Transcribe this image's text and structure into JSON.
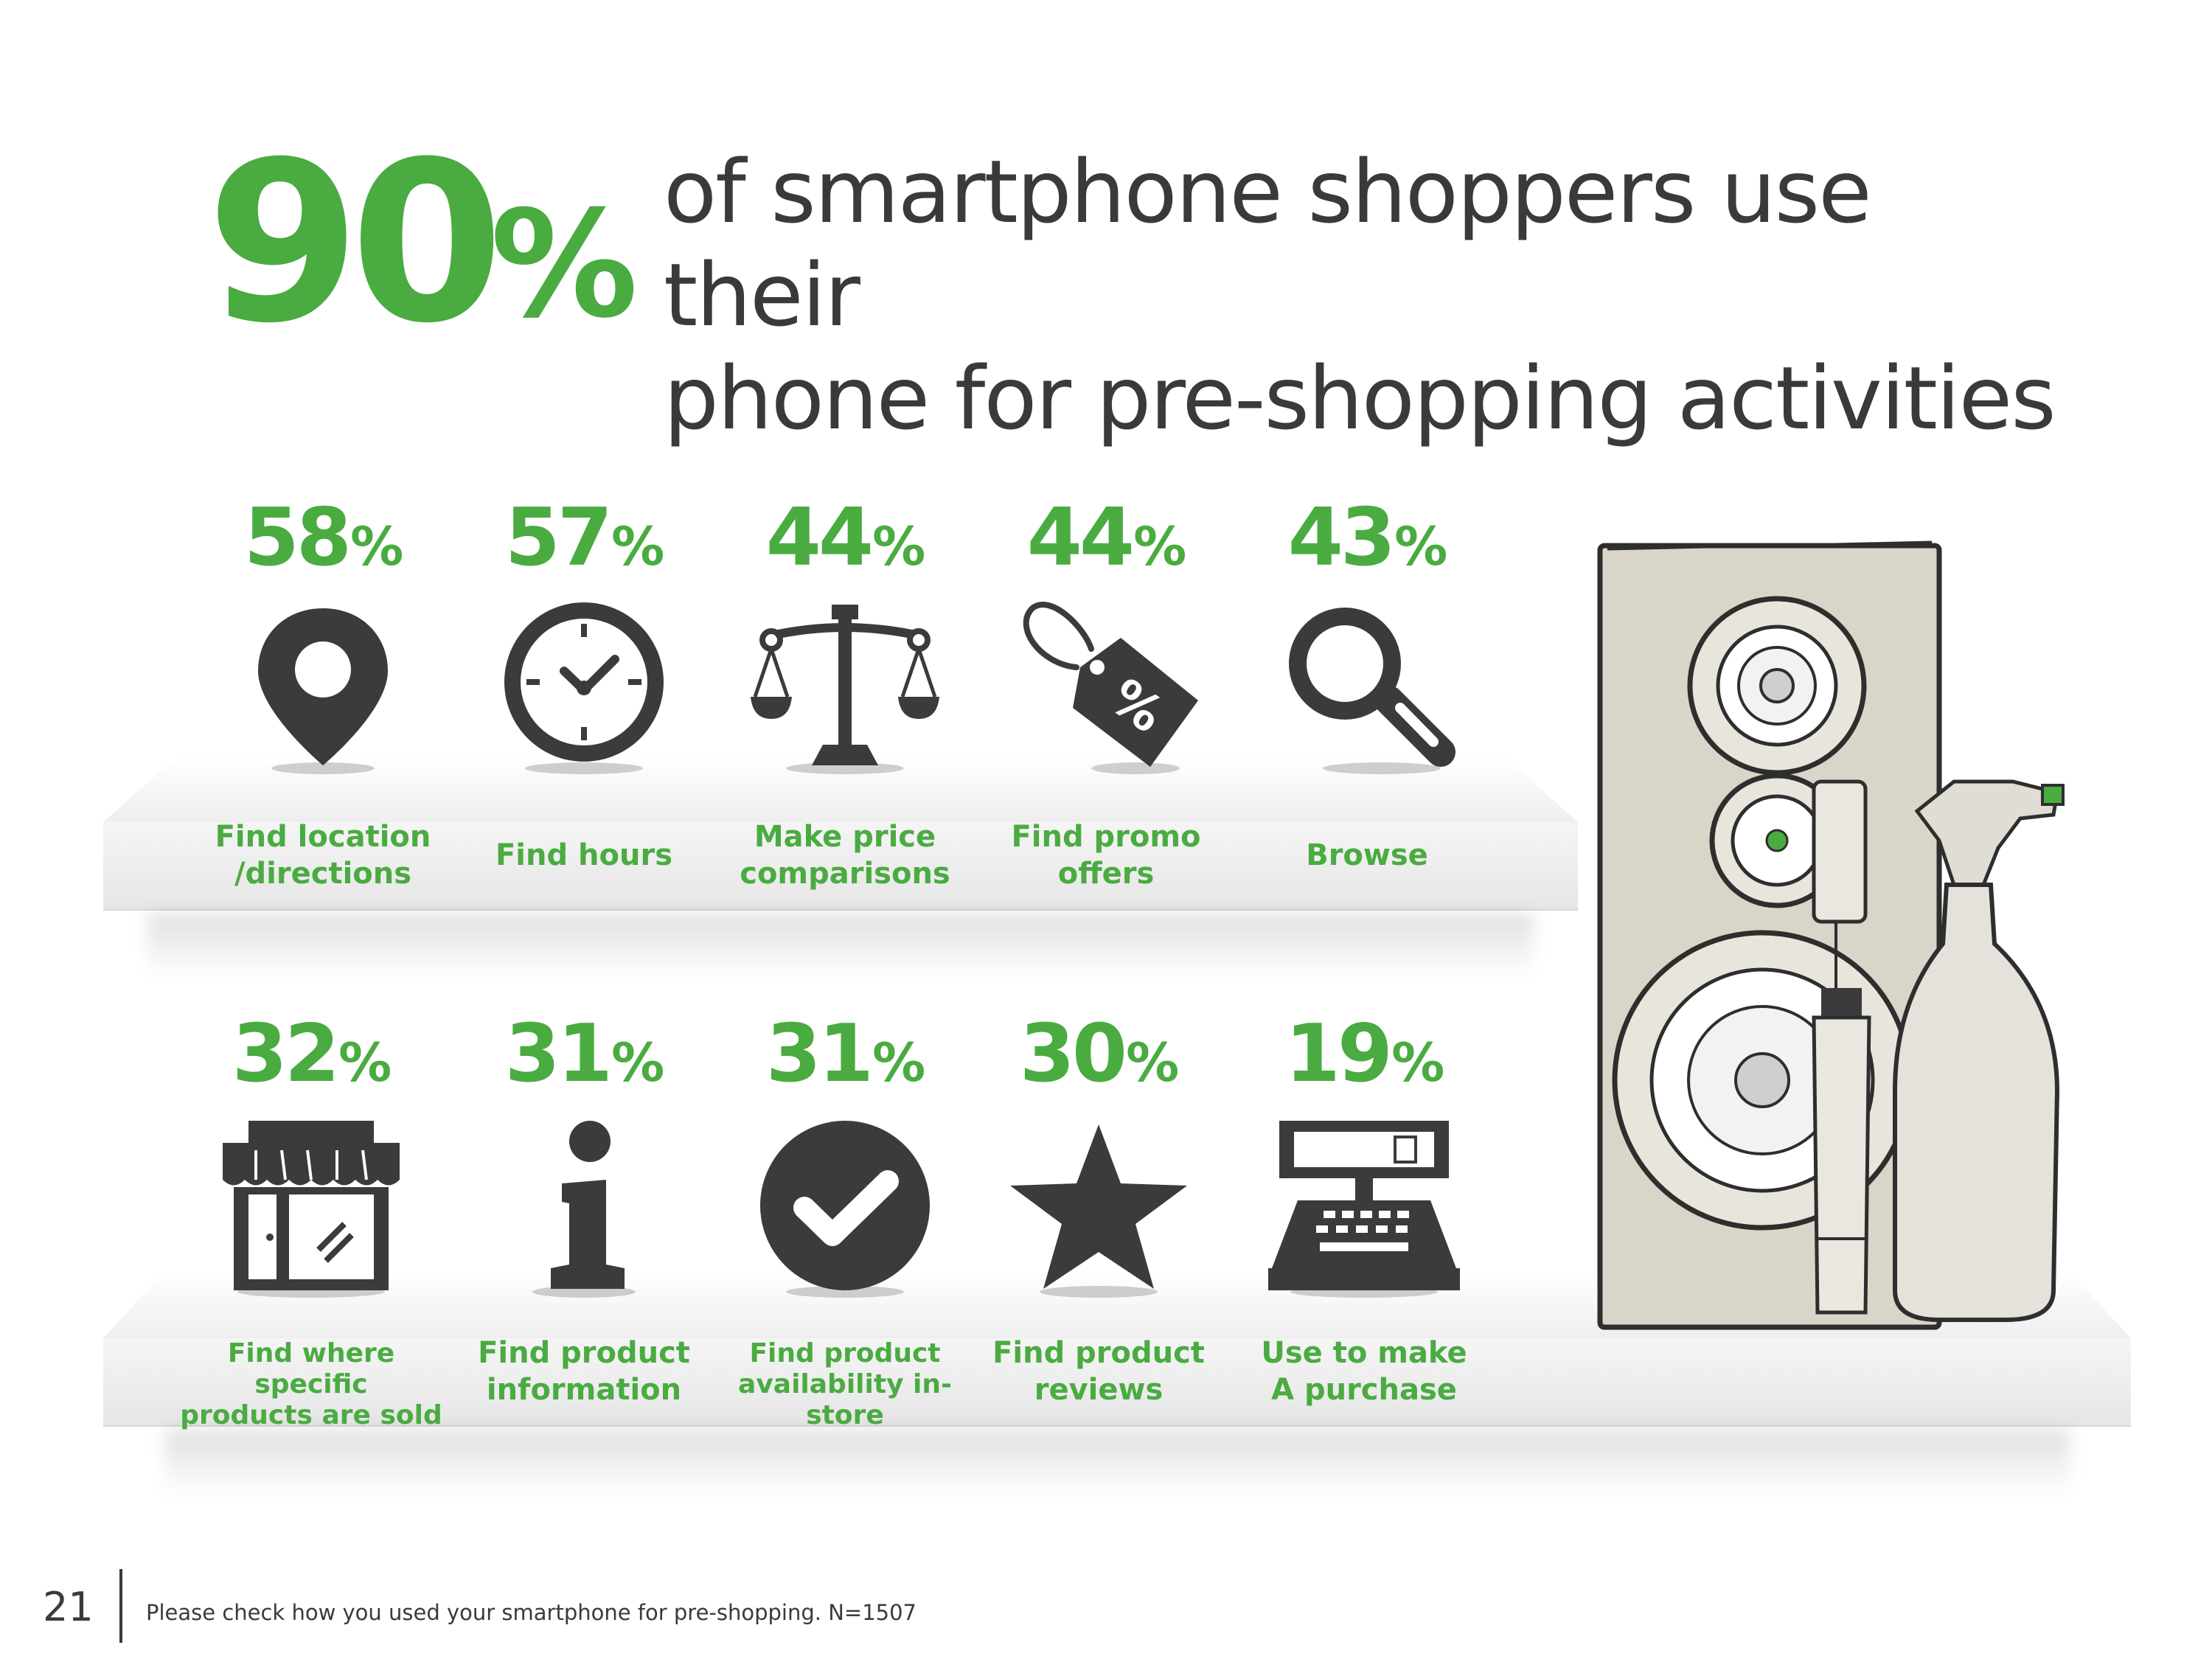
{
  "headline": {
    "value": "90",
    "unit": "%",
    "line1": "of smartphone shoppers use their",
    "line2": "phone for pre-shopping activities"
  },
  "stats_row1": [
    {
      "value": "58",
      "unit": "%",
      "label_line1": "Find location",
      "label_line2": "/directions",
      "icon": "map-pin-icon"
    },
    {
      "value": "57",
      "unit": "%",
      "label_line1": "Find hours",
      "label_line2": "",
      "icon": "clock-icon"
    },
    {
      "value": "44",
      "unit": "%",
      "label_line1": "Make price",
      "label_line2": "comparisons",
      "icon": "scale-icon"
    },
    {
      "value": "44",
      "unit": "%",
      "label_line1": "Find promo",
      "label_line2": "offers",
      "icon": "price-tag-icon"
    },
    {
      "value": "43",
      "unit": "%",
      "label_line1": "Browse",
      "label_line2": "",
      "icon": "magnifier-icon"
    }
  ],
  "stats_row2": [
    {
      "value": "32",
      "unit": "%",
      "label_line1": "Find where specific",
      "label_line2": "products are sold",
      "icon": "store-icon"
    },
    {
      "value": "31",
      "unit": "%",
      "label_line1": "Find product",
      "label_line2": "information",
      "icon": "info-icon"
    },
    {
      "value": "31",
      "unit": "%",
      "label_line1": "Find product",
      "label_line2": "availability in-store",
      "icon": "checkmark-icon"
    },
    {
      "value": "30",
      "unit": "%",
      "label_line1": "Find product",
      "label_line2": "reviews",
      "icon": "star-icon"
    },
    {
      "value": "19",
      "unit": "%",
      "label_line1": "Use to make",
      "label_line2": "A purchase",
      "icon": "cash-register-icon"
    }
  ],
  "footer": {
    "page_number": "21",
    "note": "Please check how you used your smartphone for pre-shopping. N=1507"
  },
  "colors": {
    "accent": "#4aab41",
    "text": "#3a3a3a",
    "icon": "#3b3b3b",
    "shelf": "#eeeeee"
  }
}
